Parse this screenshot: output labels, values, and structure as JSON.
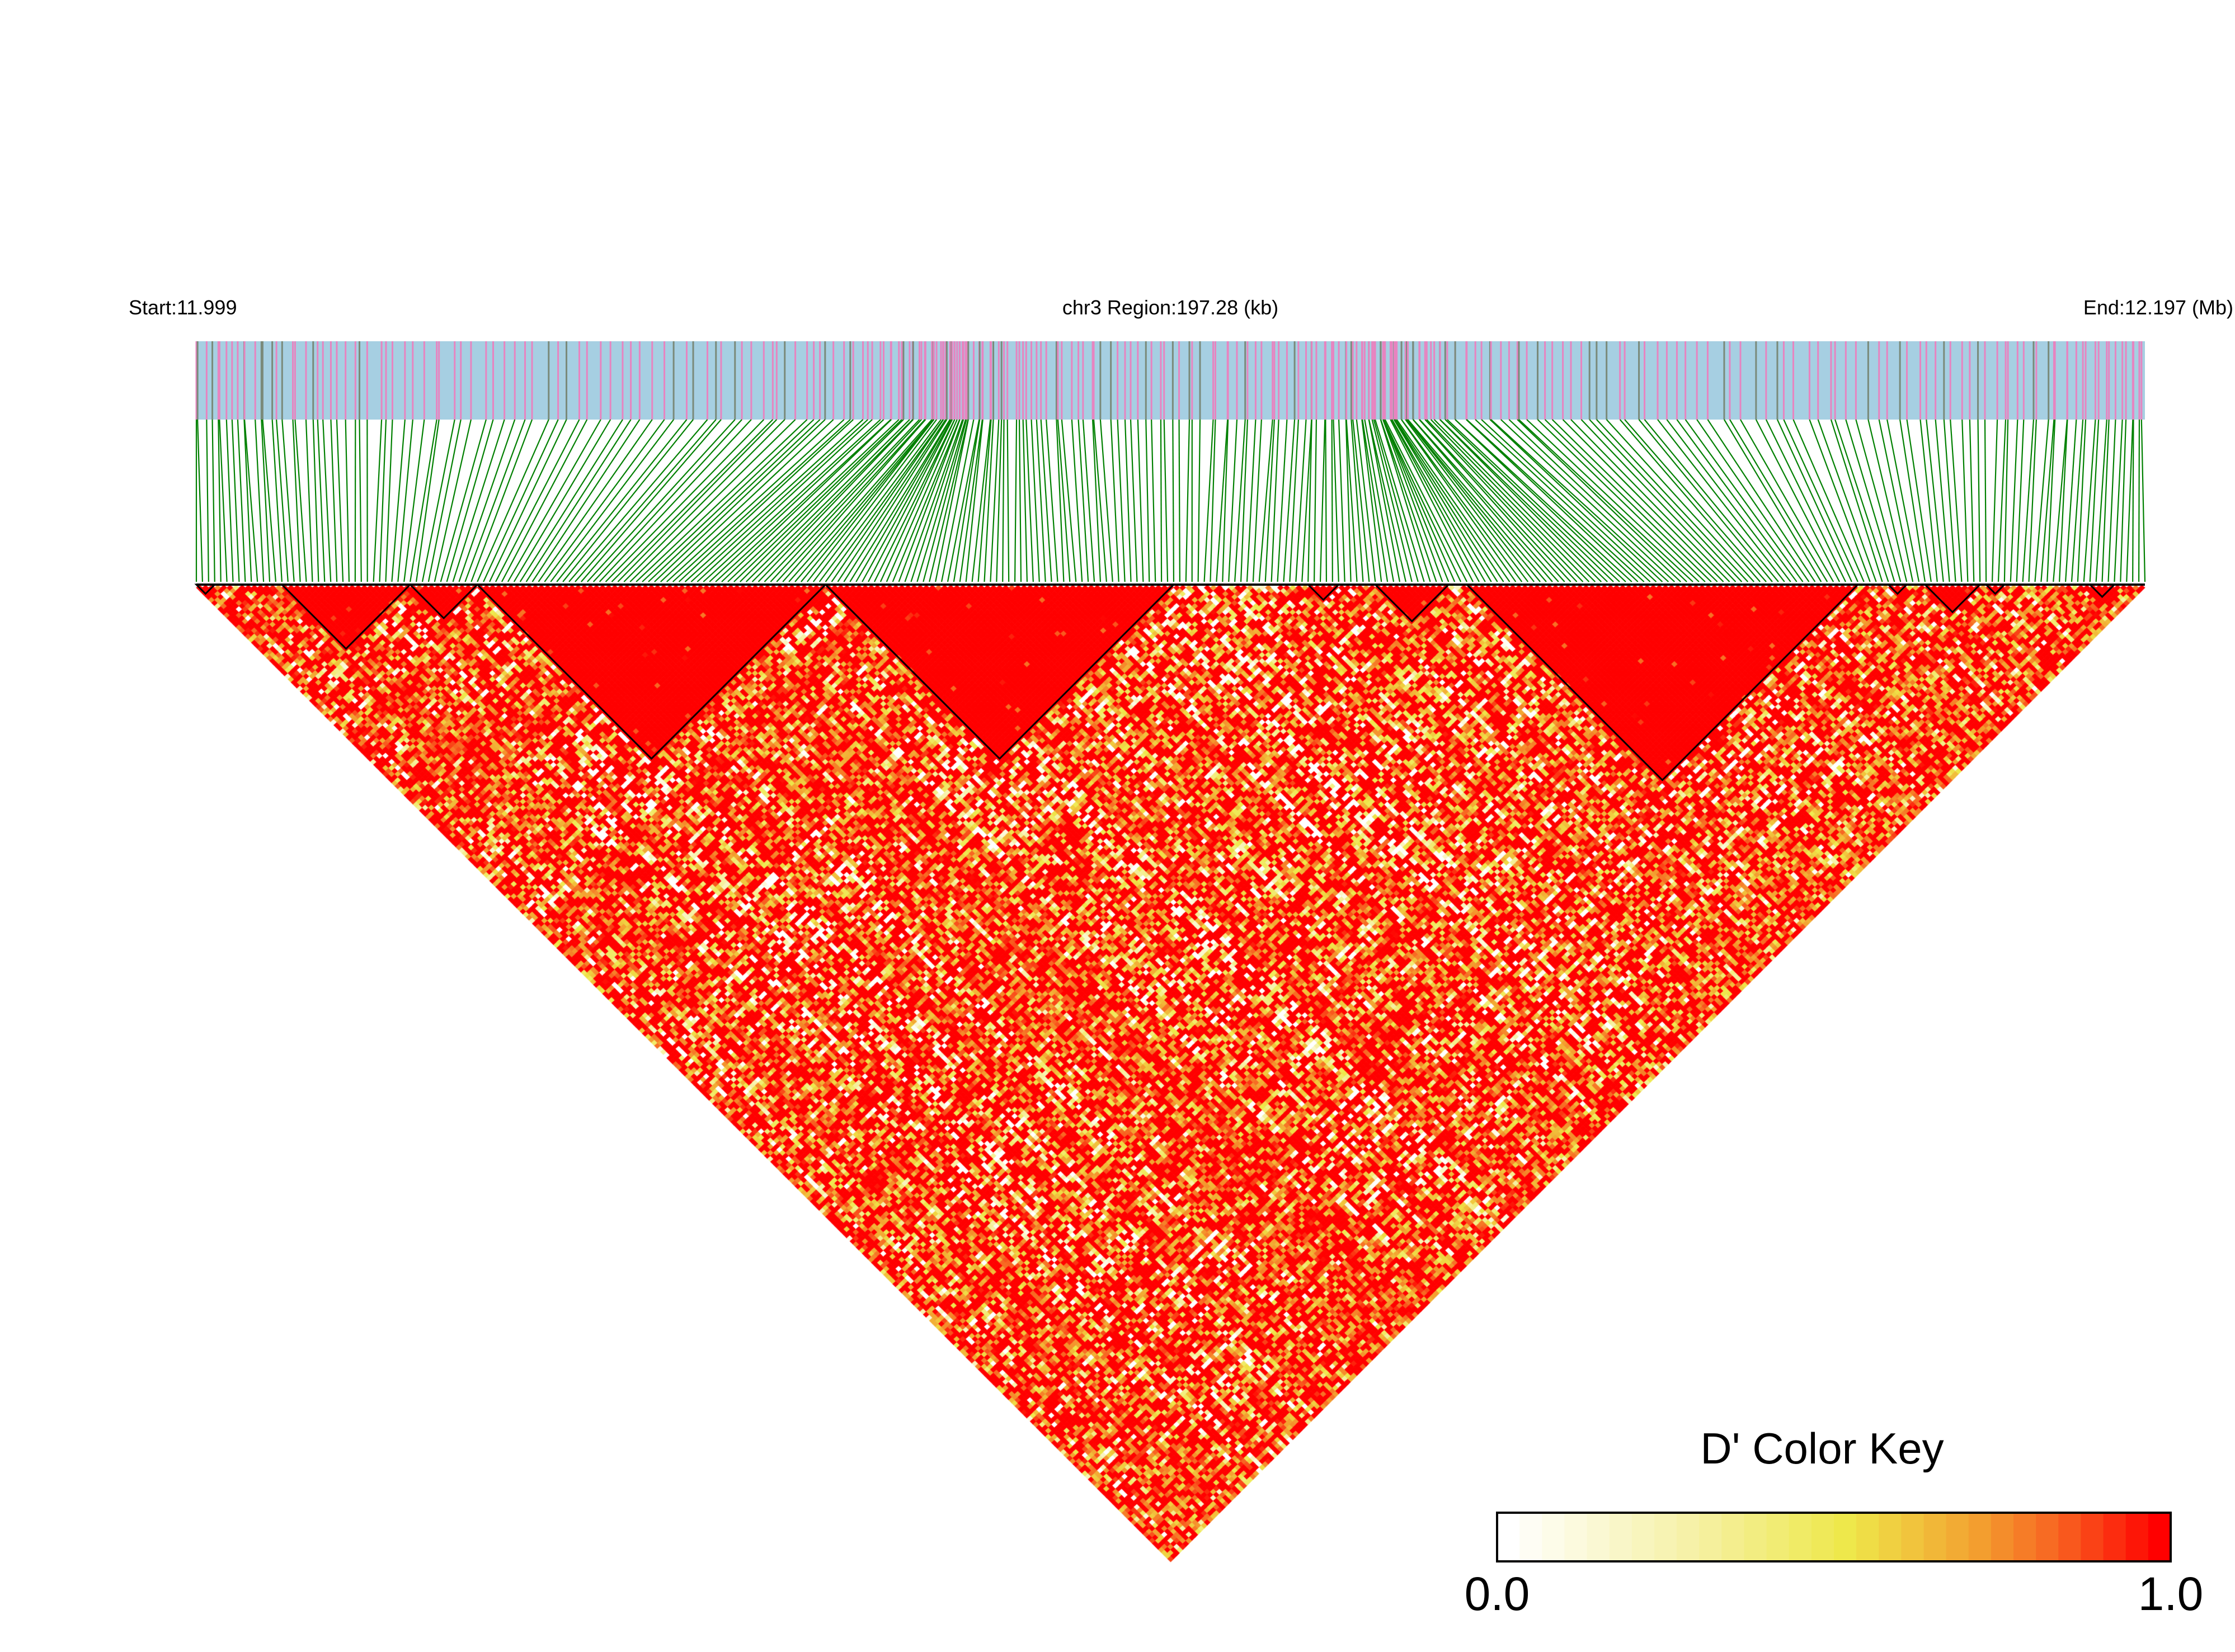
{
  "chart_data": {
    "type": "heatmap",
    "subtype": "LD triangle (D')",
    "header": {
      "start_label": "Start:11.999",
      "region_label": "chr3 Region:197.28 (kb)",
      "end_label": "End:12.197 (Mb)"
    },
    "chromosome": "chr3",
    "region_start_mb": 11.999,
    "region_end_mb": 12.197,
    "region_length_kb": 197.28,
    "ld_blocks_kb": [
      [
        0.0,
        1.9
      ],
      [
        8.4,
        21.5
      ],
      [
        21.8,
        28.4
      ],
      [
        28.4,
        63.5
      ],
      [
        63.5,
        99.1
      ],
      [
        112.4,
        115.8
      ],
      [
        119.4,
        126.6
      ],
      [
        128.8,
        168.0
      ],
      [
        171.6,
        173.1
      ],
      [
        175.2,
        180.3
      ],
      [
        181.0,
        183.2
      ],
      [
        191.9,
        194.1
      ]
    ],
    "color_key": {
      "title": "D' Color Key",
      "min_label": "0.0",
      "max_label": "1.0",
      "min": 0.0,
      "max": 1.0,
      "colors": [
        "#ffffff",
        "#f5f0a0",
        "#eee84a",
        "#f3a030",
        "#f86020",
        "#ff0000"
      ]
    },
    "snp_bar_colors": {
      "background": "#a6cfe2",
      "marks_primary": "#e784c0",
      "marks_secondary": "#7a8a7a",
      "connector": "#008000"
    }
  }
}
